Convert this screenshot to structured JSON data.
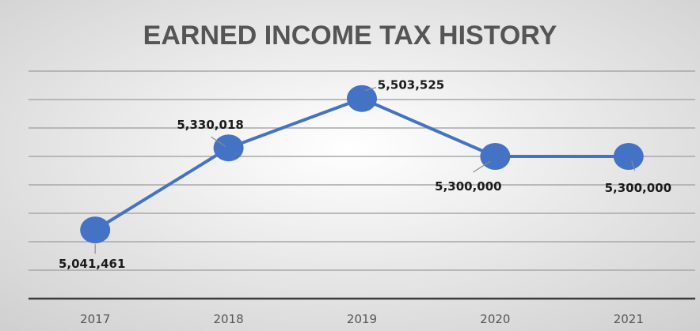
{
  "chart_data": {
    "type": "line",
    "title": "EARNED INCOME TAX HISTORY",
    "xlabel": "",
    "ylabel": "",
    "categories": [
      "2017",
      "2018",
      "2019",
      "2020",
      "2021"
    ],
    "series": [
      {
        "values": [
          5041461,
          5330018,
          5503525,
          5300000,
          5300000
        ],
        "data_labels": [
          "5,041,461",
          "5,330,018",
          "5,503,525",
          "5,300,000",
          "5,300,000"
        ]
      }
    ],
    "ylim": [
      4800000,
      5600000
    ],
    "grid": true,
    "legend": "none",
    "y_axis_labels_shown": false,
    "colors": {
      "series": "#4472c4",
      "background_center": "#ffffff",
      "background_edge": "#cfcfcf",
      "gridline": "#a8a8a8",
      "title": "#555555"
    }
  }
}
